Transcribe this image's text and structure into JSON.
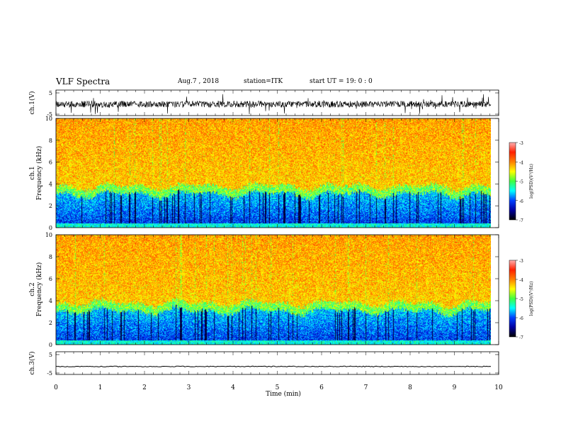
{
  "header": {
    "title": "VLF Spectra",
    "date": "Aug.7 , 2018",
    "station": "station=ITK",
    "start": "start UT = 19: 0 : 0"
  },
  "chart_data": [
    {
      "type": "line",
      "name": "waveform-ch1",
      "ylabel": "ch.1(V)",
      "yticks": [
        "5",
        "-5"
      ],
      "ylim": [
        -5,
        5
      ],
      "xlim": [
        0,
        10
      ]
    },
    {
      "type": "heatmap",
      "name": "spectrogram-ch1",
      "ylabel": "ch.1\nFrequency (kHz)",
      "ylabel_ch": "ch.1",
      "ylabel_freq": "Frequency (kHz)",
      "yticks": [
        "0",
        "2",
        "4",
        "6",
        "8",
        "10"
      ],
      "ylim": [
        0,
        10
      ],
      "xlim": [
        0,
        9.8
      ],
      "colorbar": {
        "label": "log(PSD)(V²/Hz)",
        "ticks": [
          "-3",
          "-4",
          "-5",
          "-6",
          "-7"
        ],
        "range": [
          -7,
          -3
        ]
      }
    },
    {
      "type": "heatmap",
      "name": "spectrogram-ch2",
      "ylabel_ch": "ch.2",
      "ylabel_freq": "Frequency (kHz)",
      "yticks": [
        "0",
        "2",
        "4",
        "6",
        "8",
        "10"
      ],
      "ylim": [
        0,
        10
      ],
      "xlim": [
        0,
        9.8
      ],
      "colorbar": {
        "label": "log(PSD)(V²/Hz)",
        "ticks": [
          "-3",
          "-4",
          "-5",
          "-6",
          "-7"
        ],
        "range": [
          -7,
          -3
        ]
      }
    },
    {
      "type": "line",
      "name": "waveform-ch3",
      "ylabel": "ch.3(V)",
      "yticks": [
        "5",
        "-5"
      ],
      "ylim": [
        -5,
        5
      ],
      "level": -1.5,
      "xlim": [
        0,
        10
      ]
    }
  ],
  "xaxis": {
    "label": "Time (min)",
    "ticks": [
      "0",
      "1",
      "2",
      "3",
      "4",
      "5",
      "6",
      "7",
      "8",
      "9",
      "10"
    ],
    "range": [
      0,
      10
    ]
  },
  "colors": {
    "scale": [
      "#000000",
      "#0000a0",
      "#0040ff",
      "#00ffff",
      "#40ff40",
      "#ffff00",
      "#ff8000",
      "#ff2000",
      "#ffb0b0"
    ]
  }
}
